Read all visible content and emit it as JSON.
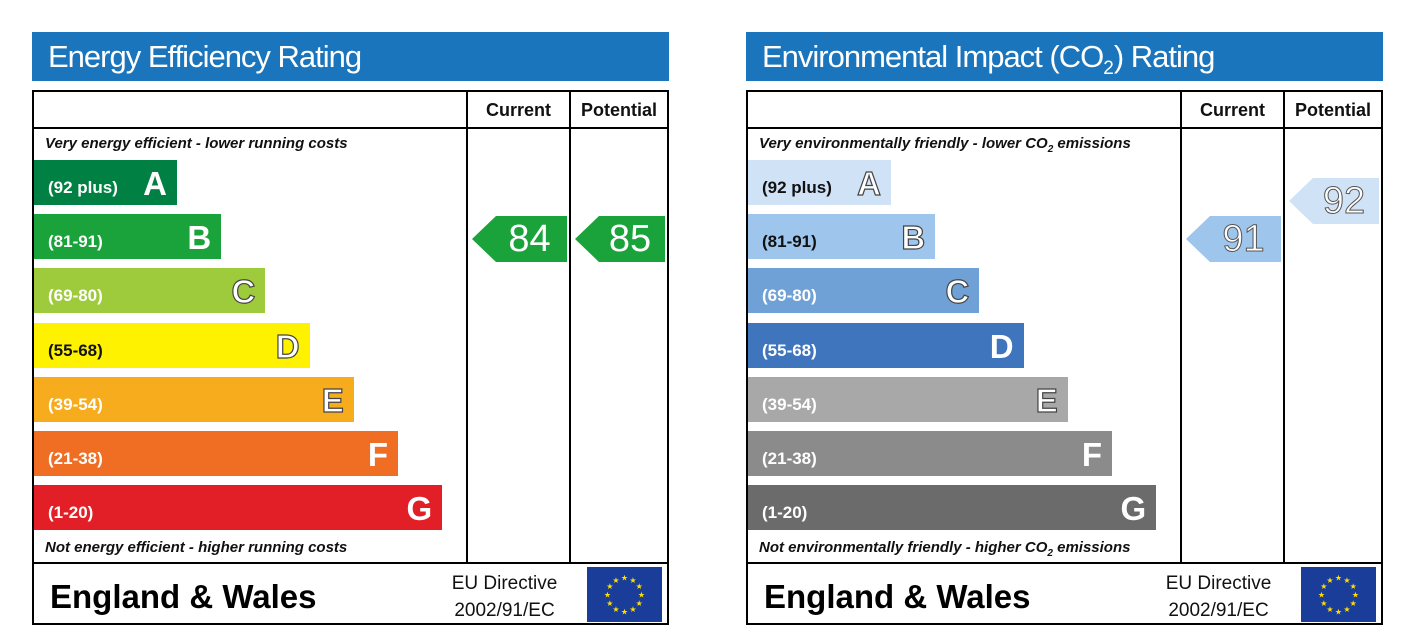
{
  "chart_data": [
    {
      "type": "table",
      "title": "Energy Efficiency Rating",
      "columns": [
        "Current",
        "Potential"
      ],
      "top_note": "Very energy efficient - lower running costs",
      "bottom_note": "Not energy efficient - higher running costs",
      "bands": [
        {
          "letter": "A",
          "range": "(92 plus)",
          "color": "#008143"
        },
        {
          "letter": "B",
          "range": "(81-91)",
          "color": "#19a33a"
        },
        {
          "letter": "C",
          "range": "(69-80)",
          "color": "#9dcb3b"
        },
        {
          "letter": "D",
          "range": "(55-68)",
          "color": "#fff200"
        },
        {
          "letter": "E",
          "range": "(39-54)",
          "color": "#f6ac1c"
        },
        {
          "letter": "F",
          "range": "(21-38)",
          "color": "#ef6e24"
        },
        {
          "letter": "G",
          "range": "(1-20)",
          "color": "#e21f26"
        }
      ],
      "current": {
        "value": 84,
        "band": "B",
        "color": "#19a33a"
      },
      "potential": {
        "value": 85,
        "band": "B",
        "color": "#19a33a"
      },
      "region": "England & Wales",
      "directive_line1": "EU Directive",
      "directive_line2": "2002/91/EC"
    },
    {
      "type": "table",
      "title_prefix": "Environmental Impact (CO",
      "title_sub": "2",
      "title_suffix": ") Rating",
      "columns": [
        "Current",
        "Potential"
      ],
      "top_note": "Very environmentally friendly - lower CO",
      "top_note_sub": "2",
      "top_note_suffix": " emissions",
      "bottom_note": "Not environmentally friendly - higher CO",
      "bottom_note_sub": "2",
      "bottom_note_suffix": " emissions",
      "bands": [
        {
          "letter": "A",
          "range": "(92 plus)",
          "color": "#cfe2f6"
        },
        {
          "letter": "B",
          "range": "(81-91)",
          "color": "#9ec5ec"
        },
        {
          "letter": "C",
          "range": "(69-80)",
          "color": "#6fa1d6"
        },
        {
          "letter": "D",
          "range": "(55-68)",
          "color": "#3f75bc"
        },
        {
          "letter": "E",
          "range": "(39-54)",
          "color": "#a8a8a8"
        },
        {
          "letter": "F",
          "range": "(21-38)",
          "color": "#8b8b8b"
        },
        {
          "letter": "G",
          "range": "(1-20)",
          "color": "#6b6b6b"
        }
      ],
      "current": {
        "value": 91,
        "band": "B",
        "color": "#9ec5ec"
      },
      "potential": {
        "value": 92,
        "band": "A",
        "color": "#cfe2f6"
      },
      "region": "England & Wales",
      "directive_line1": "EU Directive",
      "directive_line2": "2002/91/EC"
    }
  ]
}
